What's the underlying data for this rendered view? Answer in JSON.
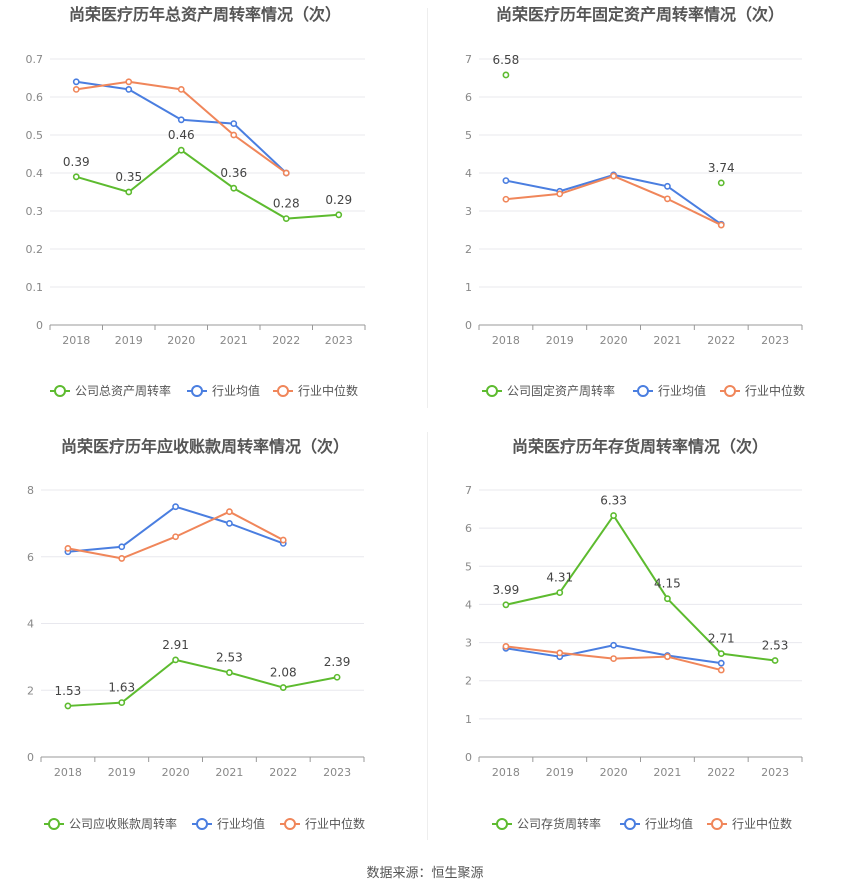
{
  "source_label": "数据来源：恒生聚源",
  "colors": {
    "company": "#5dbb2f",
    "industry_avg": "#4a7ee0",
    "industry_median": "#f0865a",
    "grid": "#e8e8ee",
    "axis_text": "#888888",
    "title": "#555555"
  },
  "chart_data": [
    {
      "type": "line",
      "title": "尚荣医疗历年总资产周转率情况（次）",
      "categories": [
        "2018",
        "2019",
        "2020",
        "2021",
        "2022",
        "2023"
      ],
      "ylim": [
        0,
        0.7
      ],
      "yticks": [
        0,
        0.1,
        0.2,
        0.3,
        0.4,
        0.5,
        0.6,
        0.7
      ],
      "yticklabels": [
        "0",
        "0.1",
        "0.2",
        "0.3",
        "0.4",
        "0.5",
        "0.6",
        "0.7"
      ],
      "grid": true,
      "legend": "bottom",
      "series": [
        {
          "name": "公司总资产周转率",
          "values": [
            0.39,
            0.35,
            0.46,
            0.36,
            0.28,
            0.29
          ],
          "labels": [
            "0.39",
            "0.35",
            "0.46",
            "0.36",
            "0.28",
            "0.29"
          ]
        },
        {
          "name": "行业均值",
          "values": [
            0.64,
            0.62,
            0.54,
            0.53,
            0.4,
            null
          ]
        },
        {
          "name": "行业中位数",
          "values": [
            0.62,
            0.64,
            0.62,
            0.5,
            0.4,
            null
          ]
        }
      ]
    },
    {
      "type": "line",
      "title": "尚荣医疗历年固定资产周转率情况（次）",
      "categories": [
        "2018",
        "2019",
        "2020",
        "2021",
        "2022",
        "2023"
      ],
      "ylim": [
        0,
        7
      ],
      "yticks": [
        0,
        1,
        2,
        3,
        4,
        5,
        6,
        7
      ],
      "yticklabels": [
        "0",
        "1",
        "2",
        "3",
        "4",
        "5",
        "6",
        "7"
      ],
      "grid": true,
      "legend": "bottom",
      "series": [
        {
          "name": "公司固定资产周转率",
          "values": [
            6.58,
            null,
            null,
            null,
            3.74,
            null
          ],
          "labels": [
            "6.58",
            "",
            "",
            "",
            "3.74",
            ""
          ]
        },
        {
          "name": "行业均值",
          "values": [
            3.8,
            3.52,
            3.95,
            3.65,
            2.65,
            null
          ]
        },
        {
          "name": "行业中位数",
          "values": [
            3.31,
            3.45,
            3.92,
            3.32,
            2.63,
            null
          ]
        }
      ]
    },
    {
      "type": "line",
      "title": "尚荣医疗历年应收账款周转率情况（次）",
      "categories": [
        "2018",
        "2019",
        "2020",
        "2021",
        "2022",
        "2023"
      ],
      "ylim": [
        0,
        8
      ],
      "yticks": [
        0,
        2,
        4,
        6,
        8
      ],
      "yticklabels": [
        "0",
        "2",
        "4",
        "6",
        "8"
      ],
      "grid": true,
      "legend": "bottom",
      "series": [
        {
          "name": "公司应收账款周转率",
          "values": [
            1.53,
            1.63,
            2.91,
            2.53,
            2.08,
            2.39
          ],
          "labels": [
            "1.53",
            "1.63",
            "2.91",
            "2.53",
            "2.08",
            "2.39"
          ]
        },
        {
          "name": "行业均值",
          "values": [
            6.15,
            6.3,
            7.5,
            7.0,
            6.4,
            null
          ]
        },
        {
          "name": "行业中位数",
          "values": [
            6.25,
            5.95,
            6.6,
            7.35,
            6.5,
            null
          ]
        }
      ]
    },
    {
      "type": "line",
      "title": "尚荣医疗历年存货周转率情况（次）",
      "categories": [
        "2018",
        "2019",
        "2020",
        "2021",
        "2022",
        "2023"
      ],
      "ylim": [
        0,
        7
      ],
      "yticks": [
        0,
        1,
        2,
        3,
        4,
        5,
        6,
        7
      ],
      "yticklabels": [
        "0",
        "1",
        "2",
        "3",
        "4",
        "5",
        "6",
        "7"
      ],
      "grid": true,
      "legend": "bottom",
      "series": [
        {
          "name": "公司存货周转率",
          "values": [
            3.99,
            4.31,
            6.33,
            4.15,
            2.71,
            2.53
          ],
          "labels": [
            "3.99",
            "4.31",
            "6.33",
            "4.15",
            "2.71",
            "2.53"
          ]
        },
        {
          "name": "行业均值",
          "values": [
            2.85,
            2.63,
            2.93,
            2.66,
            2.46,
            null
          ]
        },
        {
          "name": "行业中位数",
          "values": [
            2.9,
            2.73,
            2.58,
            2.63,
            2.28,
            null
          ]
        }
      ]
    }
  ]
}
